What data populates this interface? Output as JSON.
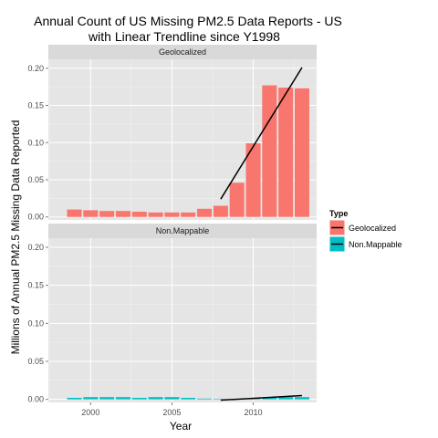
{
  "chart_data": {
    "type": "bar",
    "title": [
      "Annual Count of US Missing PM2.5 Data Reports - US",
      "with Linear Trendline since Y1998"
    ],
    "xlabel": "Year",
    "ylabel": "Millions of Annual PM2.5 Missing Data Reported",
    "x_ticks": [
      2000,
      2005,
      2010
    ],
    "y_ticks": [
      "0.00",
      "0.05",
      "0.10",
      "0.15",
      "0.20"
    ],
    "xlim": [
      1997.4,
      2013.9
    ],
    "ylim": [
      -0.004,
      0.212
    ],
    "grid": true,
    "legend": {
      "title": "Type",
      "position": "right",
      "entries": [
        "Geolocalized",
        "Non.Mappable"
      ]
    },
    "colors": {
      "Geolocalized": "#F8766D",
      "Non.Mappable": "#00BFC4",
      "trend": "#000000"
    },
    "panels": [
      {
        "label": "Geolocalized",
        "series": "Geolocalized",
        "x": [
          1999,
          2000,
          2001,
          2002,
          2003,
          2004,
          2005,
          2006,
          2007,
          2008,
          2009,
          2010,
          2011,
          2012,
          2013
        ],
        "values": [
          0.01,
          0.009,
          0.008,
          0.008,
          0.007,
          0.006,
          0.006,
          0.006,
          0.011,
          0.015,
          0.046,
          0.099,
          0.177,
          0.174,
          0.173
        ],
        "trendline": {
          "x": [
            2008,
            2013
          ],
          "y": [
            0.024,
            0.201
          ]
        }
      },
      {
        "label": "Non.Mappable",
        "series": "Non.Mappable",
        "x": [
          1999,
          2000,
          2001,
          2002,
          2003,
          2004,
          2005,
          2006,
          2007,
          2008,
          2009,
          2010,
          2011,
          2012,
          2013
        ],
        "values": [
          0.002,
          0.003,
          0.003,
          0.003,
          0.002,
          0.003,
          0.003,
          0.002,
          0.001,
          0.0,
          0.0,
          0.001,
          0.002,
          0.003,
          0.003
        ],
        "trendline": {
          "x": [
            2008,
            2013
          ],
          "y": [
            -0.001,
            0.005
          ]
        }
      }
    ]
  }
}
